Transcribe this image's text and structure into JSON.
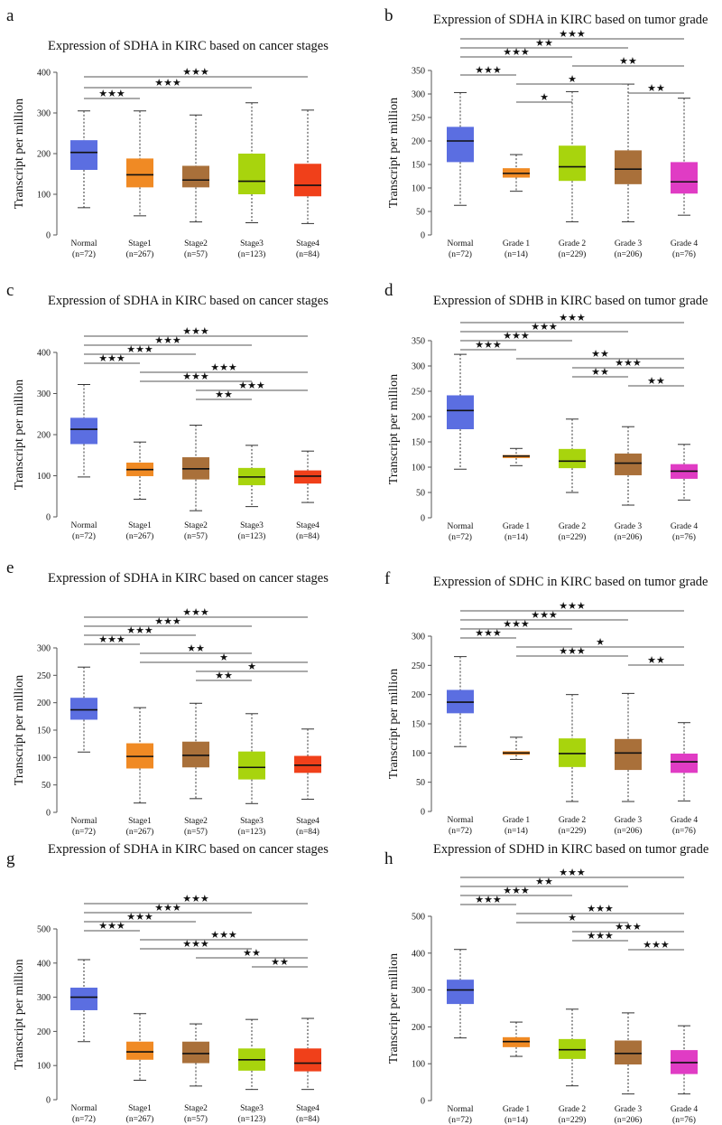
{
  "chart_data": [
    {
      "panel": "a",
      "title": "Expression of SDHA in KIRC based on cancer stages",
      "type": "box",
      "ylabel": "Transcript per million",
      "xlabel": "",
      "ylim": [
        0,
        400
      ],
      "yticks": [
        0,
        100,
        200,
        300,
        400
      ],
      "categories": [
        "Normal",
        "Stage1",
        "Stage2",
        "Stage3",
        "Stage4"
      ],
      "n_labels": [
        "(n=72)",
        "(n=267)",
        "(n=57)",
        "(n=123)",
        "(n=84)"
      ],
      "colors": [
        "#5b6ee1",
        "#f08a24",
        "#a9703a",
        "#a8d40d",
        "#f0401a"
      ],
      "boxes": [
        {
          "min": 67,
          "q1": 160,
          "median": 203,
          "q3": 233,
          "max": 305
        },
        {
          "min": 47,
          "q1": 117,
          "median": 148,
          "q3": 188,
          "max": 305
        },
        {
          "min": 32,
          "q1": 117,
          "median": 135,
          "q3": 170,
          "max": 295
        },
        {
          "min": 30,
          "q1": 100,
          "median": 132,
          "q3": 200,
          "max": 325
        },
        {
          "min": 28,
          "q1": 95,
          "median": 122,
          "q3": 175,
          "max": 307
        }
      ],
      "comparisons": [
        {
          "from": 0,
          "to": 4,
          "stars": "★★★"
        },
        {
          "from": 0,
          "to": 3,
          "stars": "★★★"
        },
        {
          "from": 0,
          "to": 1,
          "stars": "★★★"
        }
      ]
    },
    {
      "panel": "b",
      "title": "Expression of SDHA in KIRC based on tumor grade",
      "type": "box",
      "ylabel": "Transcript per million",
      "xlabel": "",
      "ylim": [
        0,
        350
      ],
      "yticks": [
        0,
        50,
        100,
        150,
        200,
        250,
        300,
        350
      ],
      "categories": [
        "Normal",
        "Grade 1",
        "Grade 2",
        "Grade 3",
        "Grade 4"
      ],
      "n_labels": [
        "(n=72)",
        "(n=14)",
        "(n=229)",
        "(n=206)",
        "(n=76)"
      ],
      "colors": [
        "#5b6ee1",
        "#f08a24",
        "#a8d40d",
        "#a9703a",
        "#e03cc4"
      ],
      "boxes": [
        {
          "min": 63,
          "q1": 155,
          "median": 200,
          "q3": 230,
          "max": 303
        },
        {
          "min": 93,
          "q1": 122,
          "median": 131,
          "q3": 142,
          "max": 171
        },
        {
          "min": 28,
          "q1": 115,
          "median": 145,
          "q3": 190,
          "max": 305
        },
        {
          "min": 28,
          "q1": 108,
          "median": 140,
          "q3": 180,
          "max": 321
        },
        {
          "min": 42,
          "q1": 88,
          "median": 113,
          "q3": 155,
          "max": 291
        }
      ],
      "comparisons": [
        {
          "from": 0,
          "to": 4,
          "stars": "★★★"
        },
        {
          "from": 0,
          "to": 3,
          "stars": "★★"
        },
        {
          "from": 0,
          "to": 2,
          "stars": "★★★"
        },
        {
          "from": 2,
          "to": 4,
          "stars": "★★"
        },
        {
          "from": 0,
          "to": 1,
          "stars": "★★★"
        },
        {
          "from": 1,
          "to": 3,
          "stars": "★"
        },
        {
          "from": 3,
          "to": 4,
          "stars": "★★"
        },
        {
          "from": 1,
          "to": 2,
          "stars": "★"
        }
      ]
    },
    {
      "panel": "c",
      "title": "Expression of SDHA in KIRC based on cancer stages",
      "type": "box",
      "ylabel": "Transcript per million",
      "xlabel": "",
      "ylim": [
        0,
        400
      ],
      "yticks": [
        0,
        100,
        200,
        300,
        400
      ],
      "categories": [
        "Normal",
        "Stage1",
        "Stage2",
        "Stage3",
        "Stage4"
      ],
      "n_labels": [
        "(n=72)",
        "(n=267)",
        "(n=57)",
        "(n=123)",
        "(n=84)"
      ],
      "colors": [
        "#5b6ee1",
        "#f08a24",
        "#a9703a",
        "#a8d40d",
        "#f0401a"
      ],
      "boxes": [
        {
          "min": 97,
          "q1": 177,
          "median": 213,
          "q3": 241,
          "max": 322
        },
        {
          "min": 43,
          "q1": 99,
          "median": 115,
          "q3": 132,
          "max": 182
        },
        {
          "min": 15,
          "q1": 91,
          "median": 117,
          "q3": 145,
          "max": 223
        },
        {
          "min": 25,
          "q1": 77,
          "median": 97,
          "q3": 119,
          "max": 174
        },
        {
          "min": 35,
          "q1": 81,
          "median": 99,
          "q3": 113,
          "max": 160
        }
      ],
      "comparisons": [
        {
          "from": 0,
          "to": 4,
          "stars": "★★★"
        },
        {
          "from": 0,
          "to": 3,
          "stars": "★★★"
        },
        {
          "from": 0,
          "to": 2,
          "stars": "★★★"
        },
        {
          "from": 0,
          "to": 1,
          "stars": "★★★"
        },
        {
          "from": 1,
          "to": 4,
          "stars": "★★★"
        },
        {
          "from": 1,
          "to": 3,
          "stars": "★★★"
        },
        {
          "from": 2,
          "to": 4,
          "stars": "★★★"
        },
        {
          "from": 2,
          "to": 3,
          "stars": "★★"
        }
      ]
    },
    {
      "panel": "d",
      "title": "Expression of SDHB in KIRC based on tumor grade",
      "type": "box",
      "ylabel": "Transcript per million",
      "xlabel": "",
      "ylim": [
        0,
        350
      ],
      "yticks": [
        0,
        50,
        100,
        150,
        200,
        250,
        300,
        350
      ],
      "categories": [
        "Normal",
        "Grade 1",
        "Grade 2",
        "Grade 3",
        "Grade 4"
      ],
      "n_labels": [
        "(n=72)",
        "(n=14)",
        "(n=229)",
        "(n=206)",
        "(n=76)"
      ],
      "colors": [
        "#5b6ee1",
        "#f08a24",
        "#a8d40d",
        "#a9703a",
        "#e03cc4"
      ],
      "boxes": [
        {
          "min": 96,
          "q1": 175,
          "median": 212,
          "q3": 242,
          "max": 323
        },
        {
          "min": 103,
          "q1": 118,
          "median": 122,
          "q3": 124,
          "max": 137
        },
        {
          "min": 50,
          "q1": 98,
          "median": 112,
          "q3": 136,
          "max": 195
        },
        {
          "min": 25,
          "q1": 84,
          "median": 108,
          "q3": 127,
          "max": 180
        },
        {
          "min": 35,
          "q1": 77,
          "median": 92,
          "q3": 106,
          "max": 145
        }
      ],
      "comparisons": [
        {
          "from": 0,
          "to": 4,
          "stars": "★★★"
        },
        {
          "from": 0,
          "to": 3,
          "stars": "★★★"
        },
        {
          "from": 0,
          "to": 2,
          "stars": "★★★"
        },
        {
          "from": 0,
          "to": 1,
          "stars": "★★★"
        },
        {
          "from": 1,
          "to": 4,
          "stars": "★★"
        },
        {
          "from": 2,
          "to": 4,
          "stars": "★★★"
        },
        {
          "from": 2,
          "to": 3,
          "stars": "★★"
        },
        {
          "from": 3,
          "to": 4,
          "stars": "★★"
        }
      ]
    },
    {
      "panel": "e",
      "title": "Expression of SDHA in KIRC based on cancer stages",
      "type": "box",
      "ylabel": "Transcript per million",
      "xlabel": "",
      "ylim": [
        0,
        300
      ],
      "yticks": [
        0,
        50,
        100,
        150,
        200,
        250,
        300
      ],
      "categories": [
        "Normal",
        "Stage1",
        "Stage2",
        "Stage3",
        "Stage4"
      ],
      "n_labels": [
        "(n=72)",
        "(n=267)",
        "(n=57)",
        "(n=123)",
        "(n=84)"
      ],
      "colors": [
        "#5b6ee1",
        "#f08a24",
        "#a9703a",
        "#a8d40d",
        "#f0401a"
      ],
      "boxes": [
        {
          "min": 110,
          "q1": 169,
          "median": 187,
          "q3": 209,
          "max": 265
        },
        {
          "min": 17,
          "q1": 80,
          "median": 102,
          "q3": 126,
          "max": 191
        },
        {
          "min": 25,
          "q1": 82,
          "median": 104,
          "q3": 129,
          "max": 199
        },
        {
          "min": 16,
          "q1": 60,
          "median": 82,
          "q3": 111,
          "max": 180
        },
        {
          "min": 24,
          "q1": 72,
          "median": 86,
          "q3": 103,
          "max": 152
        }
      ],
      "comparisons": [
        {
          "from": 0,
          "to": 4,
          "stars": "★★★"
        },
        {
          "from": 0,
          "to": 3,
          "stars": "★★★"
        },
        {
          "from": 0,
          "to": 2,
          "stars": "★★★"
        },
        {
          "from": 0,
          "to": 1,
          "stars": "★★★"
        },
        {
          "from": 1,
          "to": 3,
          "stars": "★★"
        },
        {
          "from": 1,
          "to": 4,
          "stars": "★"
        },
        {
          "from": 2,
          "to": 4,
          "stars": "★"
        },
        {
          "from": 2,
          "to": 3,
          "stars": "★★"
        }
      ]
    },
    {
      "panel": "f",
      "title": "Expression of SDHC in KIRC based on tumor grade",
      "type": "box",
      "ylabel": "Transcript per million",
      "xlabel": "",
      "ylim": [
        0,
        300
      ],
      "yticks": [
        0,
        50,
        100,
        150,
        200,
        250,
        300
      ],
      "categories": [
        "Normal",
        "Grade 1",
        "Grade 2",
        "Grade 3",
        "Grade 4"
      ],
      "n_labels": [
        "(n=72)",
        "(n=14)",
        "(n=229)",
        "(n=206)",
        "(n=76)"
      ],
      "colors": [
        "#5b6ee1",
        "#f08a24",
        "#a8d40d",
        "#a9703a",
        "#e03cc4"
      ],
      "boxes": [
        {
          "min": 111,
          "q1": 168,
          "median": 187,
          "q3": 208,
          "max": 265
        },
        {
          "min": 89,
          "q1": 97,
          "median": 100,
          "q3": 103,
          "max": 127
        },
        {
          "min": 17,
          "q1": 76,
          "median": 99,
          "q3": 125,
          "max": 200
        },
        {
          "min": 17,
          "q1": 71,
          "median": 100,
          "q3": 124,
          "max": 202
        },
        {
          "min": 18,
          "q1": 66,
          "median": 85,
          "q3": 99,
          "max": 152
        }
      ],
      "comparisons": [
        {
          "from": 0,
          "to": 4,
          "stars": "★★★"
        },
        {
          "from": 0,
          "to": 3,
          "stars": "★★★"
        },
        {
          "from": 0,
          "to": 2,
          "stars": "★★★"
        },
        {
          "from": 0,
          "to": 1,
          "stars": "★★★"
        },
        {
          "from": 1,
          "to": 4,
          "stars": "★"
        },
        {
          "from": 1,
          "to": 3,
          "stars": "★★★"
        },
        {
          "from": 3,
          "to": 4,
          "stars": "★★"
        }
      ]
    },
    {
      "panel": "g",
      "title": "Expression of SDHA in KIRC based on cancer stages",
      "type": "box",
      "ylabel": "Transcript per million",
      "xlabel": "",
      "ylim": [
        0,
        500
      ],
      "yticks": [
        0,
        100,
        200,
        300,
        400,
        500
      ],
      "categories": [
        "Normal",
        "Stage1",
        "Stage2",
        "Stage3",
        "Stage4"
      ],
      "n_labels": [
        "(n=72)",
        "(n=267)",
        "(n=57)",
        "(n=123)",
        "(n=84)"
      ],
      "colors": [
        "#5b6ee1",
        "#f08a24",
        "#a9703a",
        "#a8d40d",
        "#f0401a"
      ],
      "boxes": [
        {
          "min": 170,
          "q1": 262,
          "median": 300,
          "q3": 328,
          "max": 410
        },
        {
          "min": 57,
          "q1": 117,
          "median": 140,
          "q3": 170,
          "max": 252
        },
        {
          "min": 40,
          "q1": 107,
          "median": 135,
          "q3": 170,
          "max": 222
        },
        {
          "min": 30,
          "q1": 85,
          "median": 117,
          "q3": 150,
          "max": 235
        },
        {
          "min": 30,
          "q1": 83,
          "median": 107,
          "q3": 150,
          "max": 238
        }
      ],
      "comparisons": [
        {
          "from": 0,
          "to": 4,
          "stars": "★★★"
        },
        {
          "from": 0,
          "to": 3,
          "stars": "★★★"
        },
        {
          "from": 0,
          "to": 2,
          "stars": "★★★"
        },
        {
          "from": 0,
          "to": 1,
          "stars": "★★★"
        },
        {
          "from": 1,
          "to": 4,
          "stars": "★★★"
        },
        {
          "from": 1,
          "to": 3,
          "stars": "★★★"
        },
        {
          "from": 2,
          "to": 4,
          "stars": "★★"
        },
        {
          "from": 3,
          "to": 4,
          "stars": "★★"
        }
      ]
    },
    {
      "panel": "h",
      "title": "Expression of SDHD in KIRC based on tumor grade",
      "type": "box",
      "ylabel": "Transcript per million",
      "xlabel": "",
      "ylim": [
        0,
        500
      ],
      "yticks": [
        0,
        100,
        200,
        300,
        400,
        500
      ],
      "categories": [
        "Normal",
        "Grade 1",
        "Grade 2",
        "Grade 3",
        "Grade 4"
      ],
      "n_labels": [
        "(n=72)",
        "(n=14)",
        "(n=229)",
        "(n=206)",
        "(n=76)"
      ],
      "colors": [
        "#5b6ee1",
        "#f08a24",
        "#a8d40d",
        "#a9703a",
        "#e03cc4"
      ],
      "boxes": [
        {
          "min": 170,
          "q1": 262,
          "median": 300,
          "q3": 328,
          "max": 410
        },
        {
          "min": 120,
          "q1": 145,
          "median": 160,
          "q3": 172,
          "max": 213
        },
        {
          "min": 40,
          "q1": 113,
          "median": 138,
          "q3": 167,
          "max": 248
        },
        {
          "min": 18,
          "q1": 98,
          "median": 128,
          "q3": 163,
          "max": 238
        },
        {
          "min": 18,
          "q1": 72,
          "median": 103,
          "q3": 137,
          "max": 203
        }
      ],
      "comparisons": [
        {
          "from": 0,
          "to": 4,
          "stars": "★★★"
        },
        {
          "from": 0,
          "to": 3,
          "stars": "★★"
        },
        {
          "from": 0,
          "to": 2,
          "stars": "★★★"
        },
        {
          "from": 0,
          "to": 1,
          "stars": "★★★"
        },
        {
          "from": 1,
          "to": 4,
          "stars": "★★★"
        },
        {
          "from": 1,
          "to": 3,
          "stars": "★"
        },
        {
          "from": 2,
          "to": 4,
          "stars": "★★★"
        },
        {
          "from": 2,
          "to": 3,
          "stars": "★★★"
        },
        {
          "from": 3,
          "to": 4,
          "stars": "★★★"
        }
      ]
    }
  ]
}
